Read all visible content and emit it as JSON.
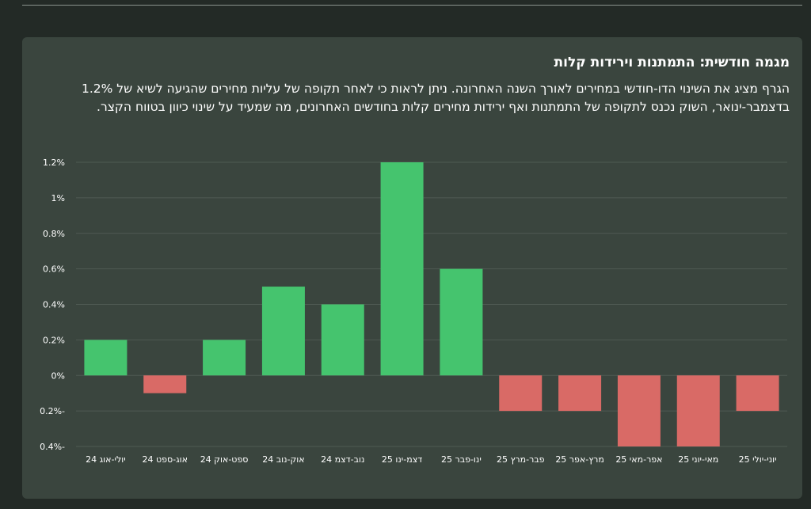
{
  "card": {
    "title": "מגמה חודשית: התמתנות וירידות קלות",
    "description": "הגרף מציג את השינוי הדו-חודשי במחירים לאורך השנה האחרונה. ניתן לראות כי לאחר תקופה של עליות מחירים שהגיעה לשיא של 1.2% בדצמבר-ינואר, השוק נכנס לתקופה של התמתנות ואף ירידות מחירים קלות בחודשים האחרונים, מה שמעיד על שינוי כיוון בטווח הקצר."
  },
  "chart_data": {
    "type": "bar",
    "title": "",
    "xlabel": "",
    "ylabel": "",
    "categories": [
      "יולי-אוג 24",
      "אוג-ספט 24",
      "ספט-אוק 24",
      "אוק-נוב 24",
      "נוב-דצמ 24",
      "דצמ-ינו 25",
      "ינו-פבר 25",
      "פבר-מרץ 25",
      "מרץ-אפר 25",
      "אפר-מאי 25",
      "מאי-יוני 25",
      "יוני-יולי 25"
    ],
    "values": [
      0.2,
      -0.1,
      0.2,
      0.5,
      0.4,
      1.2,
      0.6,
      -0.2,
      -0.2,
      -0.4,
      -0.4,
      -0.2
    ],
    "ylim": [
      -0.4,
      1.2
    ],
    "yticks": [
      1.2,
      1.0,
      0.8,
      0.6,
      0.4,
      0.2,
      0,
      -0.2,
      -0.4
    ],
    "ytick_labels": [
      "1.2%",
      "1%",
      "0.8%",
      "0.6%",
      "0.4%",
      "0.2%",
      "0%",
      "0.2%-",
      "0.4%-"
    ],
    "grid": true,
    "legend": "none",
    "colors": {
      "positive": "#45c46e",
      "negative": "#d96a66",
      "grid": "#4f5a53"
    }
  }
}
